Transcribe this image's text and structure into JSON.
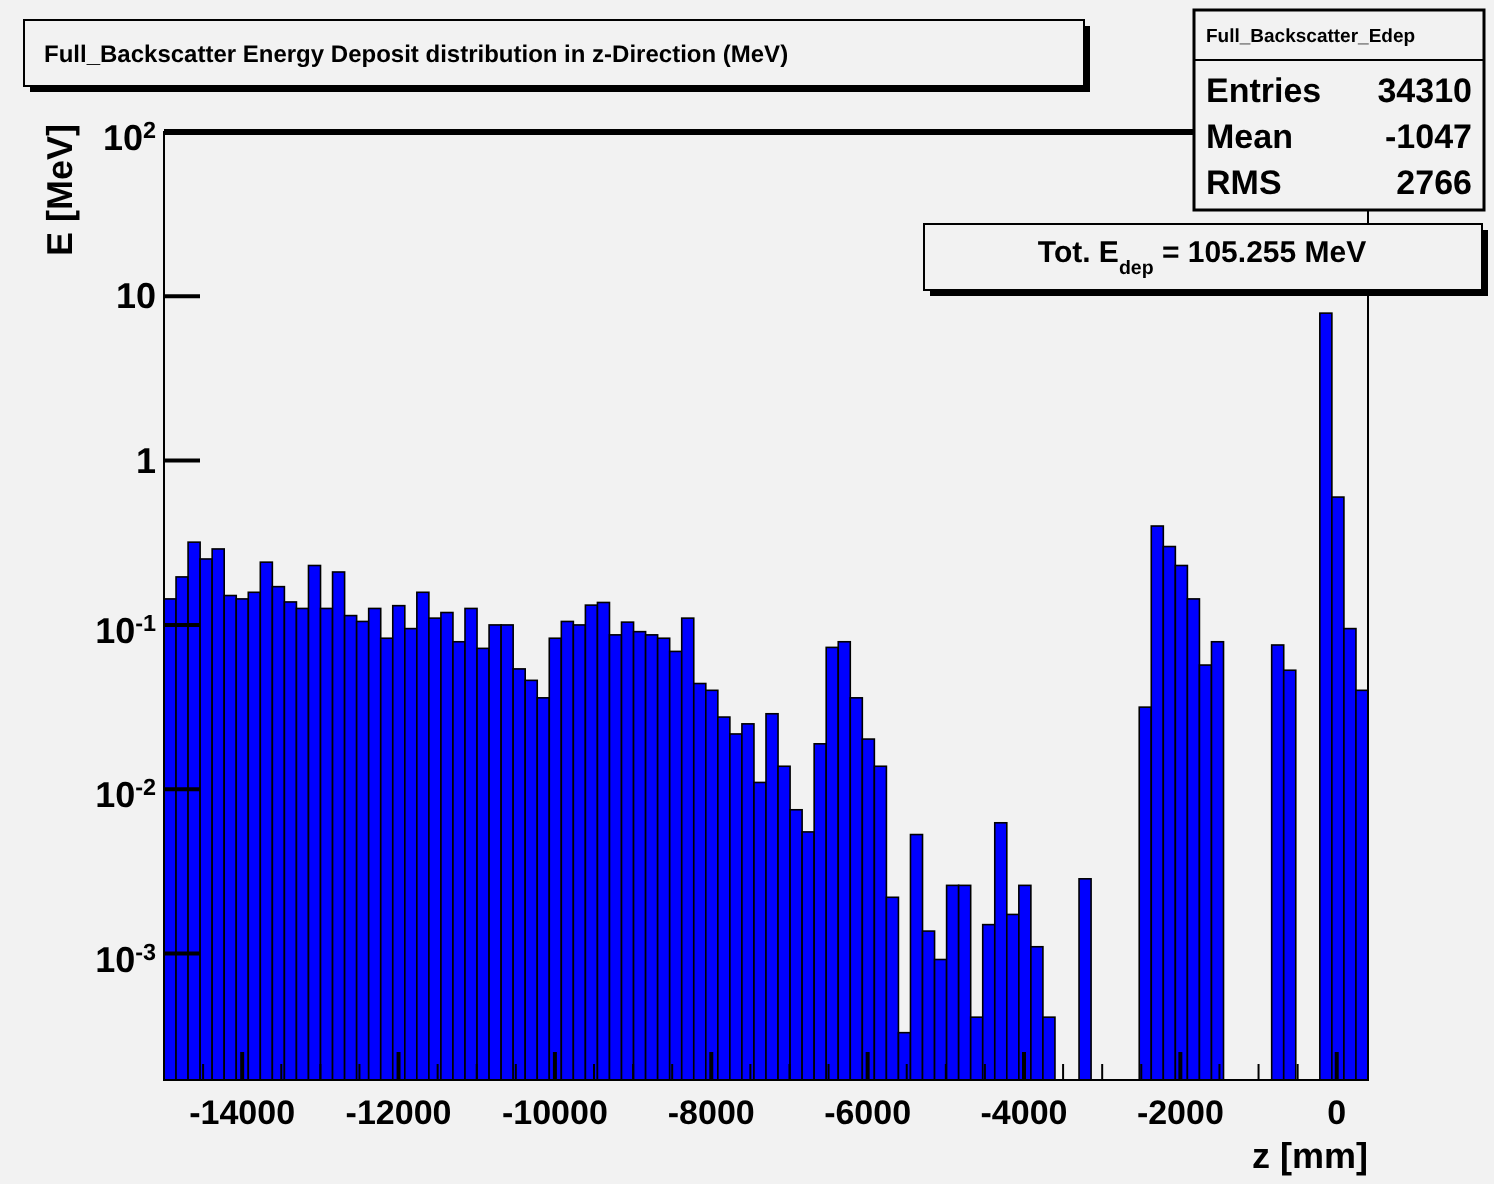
{
  "chart_data": {
    "type": "histogram",
    "title": "Full_Backscatter Energy Deposit distribution in z-Direction (MeV)",
    "xlabel": "z [mm]",
    "ylabel": "E [MeV]",
    "color": "#0000ff",
    "log": "y",
    "grid": false,
    "annotations": [
      "Full_Backscatter_Edep",
      "Entries 34310",
      "Mean -1047",
      "RMS 2766",
      "Tot. E$_{dep}$ = 105.255 MeV"
    ],
    "bins": [
      -15000,
      -14846,
      -14692,
      -14538,
      -14384,
      -14230,
      -14076,
      -13922,
      -13768,
      -13614,
      -13460,
      -13306,
      -13152,
      -12998,
      -12844,
      -12690,
      -12536,
      -12382,
      -12228,
      -12074,
      -11920,
      -11766,
      -11612,
      -11458,
      -11304,
      -11150,
      -10996,
      -10842,
      -10688,
      -10534,
      -10380,
      -10226,
      -10072,
      -9918,
      -9764,
      -9610,
      -9456,
      -9302,
      -9148,
      -8994,
      -8840,
      -8686,
      -8532,
      -8378,
      -8224,
      -8070,
      -7916,
      -7762,
      -7608,
      -7454,
      -7300,
      -7146,
      -6992,
      -6838,
      -6684,
      -6530,
      -6376,
      -6222,
      -6068,
      -5914,
      -5760,
      -5606,
      -5452,
      -5298,
      -5144,
      -4990,
      -4836,
      -4682,
      -4528,
      -4374,
      -4220,
      -4066,
      -3912,
      -3758,
      -3604,
      -3450,
      -3296,
      -3142,
      -2988,
      -2834,
      -2680,
      -2526,
      -2372,
      -2218,
      -2064,
      -1910,
      -1756,
      -1602,
      -1448,
      -1294,
      -1140,
      -986,
      -832,
      -678,
      -524,
      -370,
      -216,
      -62,
      92,
      246,
      400
    ],
    "values": [
      0.144,
      0.196,
      0.319,
      0.252,
      0.29,
      0.151,
      0.144,
      0.158,
      0.241,
      0.171,
      0.138,
      0.126,
      0.23,
      0.126,
      0.21,
      0.114,
      0.105,
      0.126,
      0.083,
      0.131,
      0.095,
      0.158,
      0.11,
      0.119,
      0.079,
      0.126,
      0.072,
      0.1,
      0.1,
      0.054,
      0.046,
      0.036,
      0.083,
      0.105,
      0.1,
      0.132,
      0.137,
      0.087,
      0.104,
      0.091,
      0.087,
      0.083,
      0.069,
      0.11,
      0.044,
      0.04,
      0.0275,
      0.0217,
      0.025,
      0.011,
      0.0288,
      0.0138,
      0.0075,
      0.0055,
      0.0189,
      0.073,
      0.079,
      0.036,
      0.0202,
      0.0138,
      0.0022,
      0.00033,
      0.0053,
      0.00137,
      0.00092,
      0.0026,
      0.0026,
      0.00041,
      0.0015,
      0.00625,
      0.00173,
      0.0026,
      0.0011,
      0.00041,
      null,
      null,
      0.00285,
      null,
      null,
      null,
      null,
      0.0316,
      0.4,
      0.3,
      0.23,
      0.144,
      0.057,
      0.079,
      null,
      null,
      null,
      null,
      0.0755,
      0.053,
      null,
      null,
      7.9,
      0.6,
      0.095,
      0.04
    ],
    "xlim": [
      -15000,
      400
    ],
    "xticks": [
      {
        "value": -14500,
        "label": null
      },
      -14000,
      {
        "value": -13500,
        "label": null
      },
      {
        "value": -13000,
        "label": null
      },
      {
        "value": -12500,
        "label": null
      },
      -12000,
      {
        "value": -11500,
        "label": null
      },
      {
        "value": -11000,
        "label": null
      },
      {
        "value": -10500,
        "label": null
      },
      -10000,
      {
        "value": -9500,
        "label": null
      },
      {
        "value": -9000,
        "label": null
      },
      {
        "value": -8500,
        "label": null
      },
      -8000,
      {
        "value": -7500,
        "label": null
      },
      {
        "value": -7000,
        "label": null
      },
      {
        "value": -6500,
        "label": null
      },
      -6000,
      {
        "value": -5500,
        "label": null
      },
      {
        "value": -5000,
        "label": null
      },
      {
        "value": -4500,
        "label": null
      },
      -4000,
      {
        "value": -3500,
        "label": null
      },
      {
        "value": -3000,
        "label": null
      },
      {
        "value": -2500,
        "label": null
      },
      -2000,
      {
        "value": -1500,
        "label": null
      },
      {
        "value": -1000,
        "label": null
      },
      {
        "value": -500,
        "label": null
      },
      0
    ],
    "ylim": [
      0.00017,
      100
    ],
    "yticks": [
      {
        "value": 0.001,
        "label": "10$^{-3}$"
      },
      {
        "value": 0.01,
        "label": "10$^{-2}$"
      },
      {
        "value": 0.1,
        "label": "10$^{-1}$"
      },
      1,
      10,
      {
        "value": 100,
        "label": "10$^{2}$"
      }
    ]
  }
}
